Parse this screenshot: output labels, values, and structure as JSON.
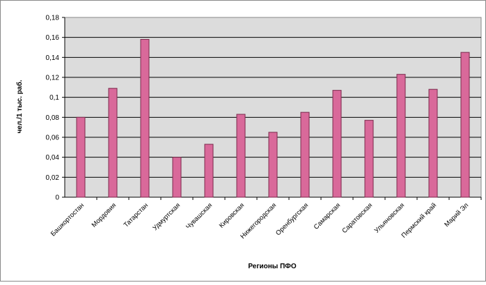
{
  "chart_data": {
    "type": "bar",
    "title": "",
    "xlabel": "Регионы ПФО",
    "ylabel": "чел./1 тыс. раб.",
    "ylim": [
      0,
      0.18
    ],
    "yticks": [
      "0",
      "0,02",
      "0,04",
      "0,06",
      "0,08",
      "0,1",
      "0,12",
      "0,14",
      "0,16",
      "0,18"
    ],
    "grid": true,
    "legend": "none",
    "categories": [
      "Башкортостан",
      "Мордовия",
      "Татарстан",
      "Удмуртская",
      "Чувашская",
      "Кировская",
      "Нижегородская",
      "Оренбургская",
      "Самарская",
      "Саратовская",
      "Ульяновская",
      "Пермский край",
      "Марий Эл"
    ],
    "values": [
      0.08,
      0.109,
      0.158,
      0.04,
      0.053,
      0.083,
      0.065,
      0.085,
      0.107,
      0.077,
      0.123,
      0.108,
      0.145
    ],
    "colors": {
      "bar": "#d9699a",
      "bar_stroke": "#7a2a4c",
      "plot_bg": "#dcdcdc",
      "grid": "#000000",
      "frame": "#888888"
    }
  }
}
